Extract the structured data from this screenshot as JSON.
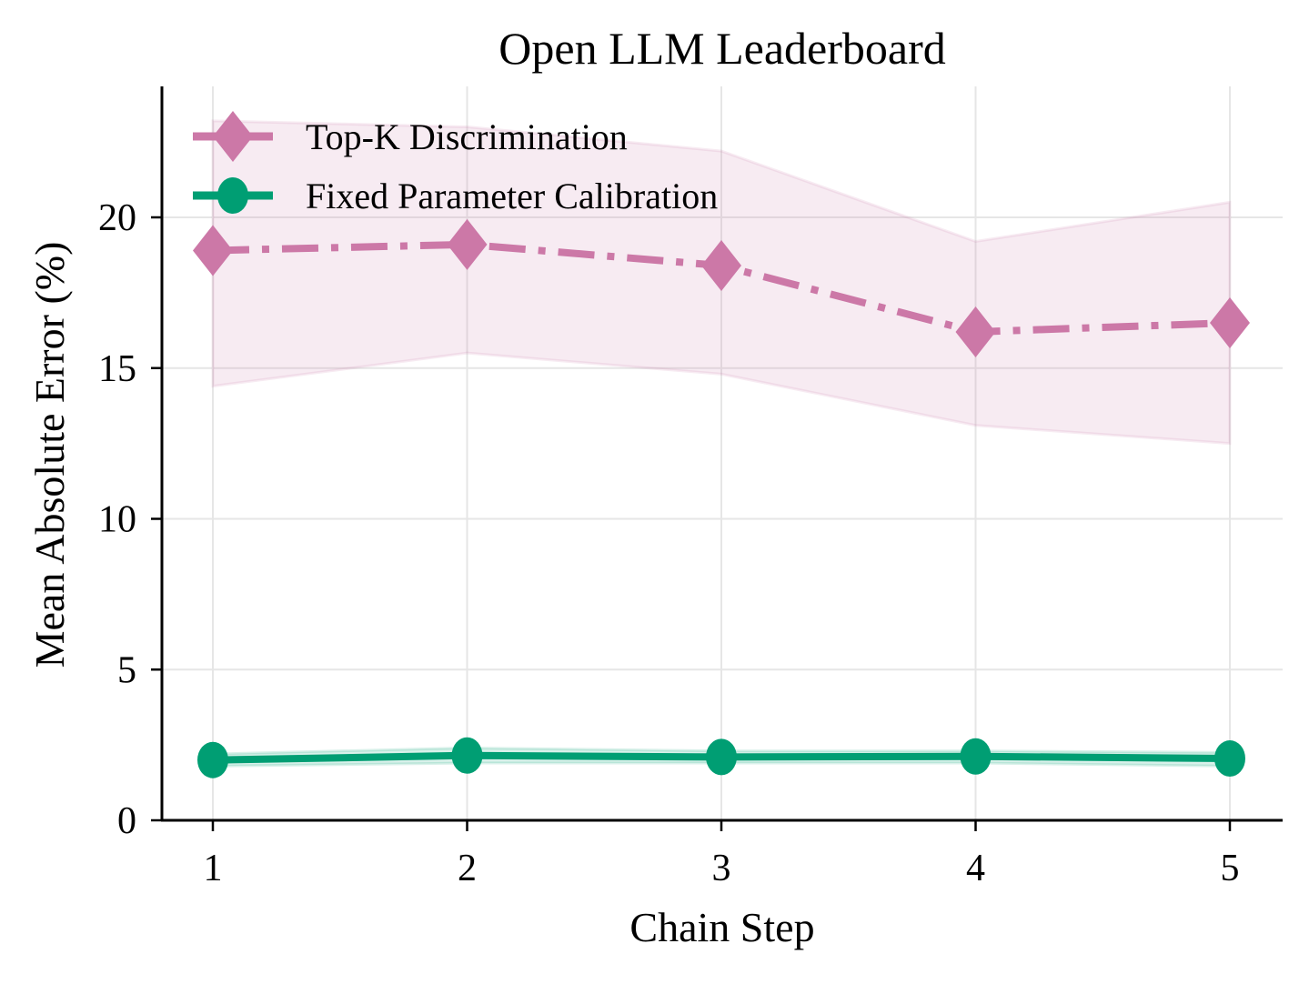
{
  "chart_data": {
    "type": "line",
    "title": "Open LLM Leaderboard",
    "xlabel": "Chain Step",
    "ylabel": "Mean Absolute Error (%)",
    "x": [
      1,
      2,
      3,
      4,
      5
    ],
    "xticks": [
      "1",
      "2",
      "3",
      "4",
      "5"
    ],
    "yticks": [
      "0",
      "5",
      "10",
      "15",
      "20"
    ],
    "ylim": [
      0,
      24.3
    ],
    "grid": true,
    "legend_position": "upper left",
    "series": [
      {
        "name": "Top-K Discrimination",
        "color": "#CC78A7",
        "marker": "diamond",
        "linestyle": "dash-dot",
        "values": [
          18.9,
          19.1,
          18.4,
          16.2,
          16.5
        ],
        "band_upper": [
          23.2,
          23.0,
          22.2,
          19.2,
          20.5
        ],
        "band_lower": [
          14.4,
          15.5,
          14.8,
          13.1,
          12.5
        ]
      },
      {
        "name": "Fixed Parameter Calibration",
        "color": "#009E73",
        "marker": "circle",
        "linestyle": "solid",
        "values": [
          2.0,
          2.15,
          2.1,
          2.12,
          2.05
        ],
        "band_upper": [
          2.2,
          2.4,
          2.3,
          2.3,
          2.25
        ],
        "band_lower": [
          1.8,
          1.9,
          1.9,
          1.9,
          1.8
        ]
      }
    ]
  }
}
